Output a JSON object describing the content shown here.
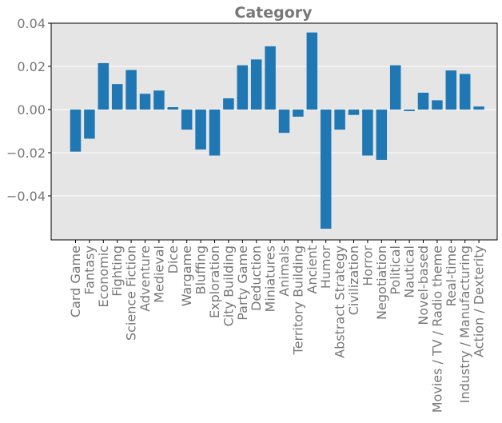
{
  "chart_data": {
    "type": "bar",
    "title": "Category",
    "xlabel": "",
    "ylabel": "",
    "ylim": [
      -0.06,
      0.04
    ],
    "yticks": [
      0.04,
      0.02,
      0.0,
      -0.02,
      -0.04
    ],
    "ytick_labels": [
      "0.04",
      "0.02",
      "0.00",
      "−0.02",
      "−0.04"
    ],
    "grid": true,
    "categories": [
      "Card Game",
      "Fantasy",
      "Economic",
      "Fighting",
      "Science Fiction",
      "Adventure",
      "Medieval",
      "Dice",
      "Wargame",
      "Bluffing",
      "Exploration",
      "City Building",
      "Party Game",
      "Deduction",
      "Miniatures",
      "Animals",
      "Territory Building",
      "Ancient",
      "Humor",
      "Abstract Strategy",
      "Civilization",
      "Horror",
      "Negotiation",
      "Political",
      "Nautical",
      "Novel-based",
      "Movies / TV / Radio theme",
      "Real-time",
      "Industry / Manufacturing",
      "Action / Dexterity"
    ],
    "values": [
      -0.0195,
      -0.0135,
      0.0215,
      0.0118,
      0.0183,
      0.0073,
      0.0088,
      0.0011,
      -0.0093,
      -0.0185,
      -0.0213,
      0.0052,
      0.0205,
      0.0232,
      0.0293,
      -0.0108,
      -0.0033,
      0.0357,
      -0.0552,
      -0.0093,
      -0.0025,
      -0.0213,
      -0.0233,
      0.0205,
      -0.0007,
      0.0078,
      0.0043,
      0.0181,
      0.0165,
      0.0014
    ],
    "colors": {
      "bar": "#1f77b4",
      "plot_bg": "#e5e5e5",
      "grid": "#ffffff",
      "text": "#777777",
      "frame": "#000000"
    }
  }
}
